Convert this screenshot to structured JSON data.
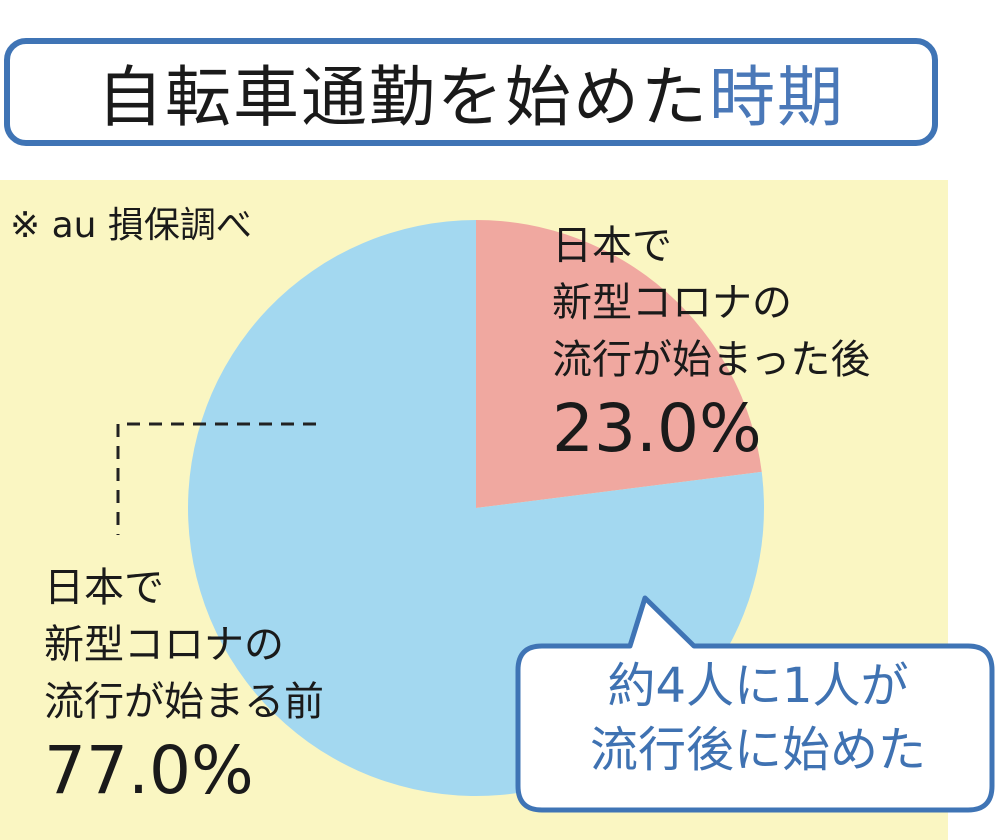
{
  "title": {
    "main": "自転車通勤を始めた",
    "accent": "時期"
  },
  "source": "※ au 損保調べ",
  "chart_data": {
    "type": "pie",
    "unit": "%",
    "slices": [
      {
        "label_lines": [
          "日本で",
          "新型コロナの",
          "流行が始まった後"
        ],
        "value": 23.0,
        "value_label": "23.0%",
        "color": "#f0a8a0"
      },
      {
        "label_lines": [
          "日本で",
          "新型コロナの",
          "流行が始まる前"
        ],
        "value": 77.0,
        "value_label": "77.0%",
        "color": "#a3d8f0"
      }
    ],
    "annotation_lines": [
      "約4人に1人が",
      "流行後に始めた"
    ]
  },
  "colors": {
    "frame": "#3f74b5",
    "panel_background": "#faf6c2",
    "callout_text": "#3f72b2",
    "title_accent": "#4a78b8"
  }
}
